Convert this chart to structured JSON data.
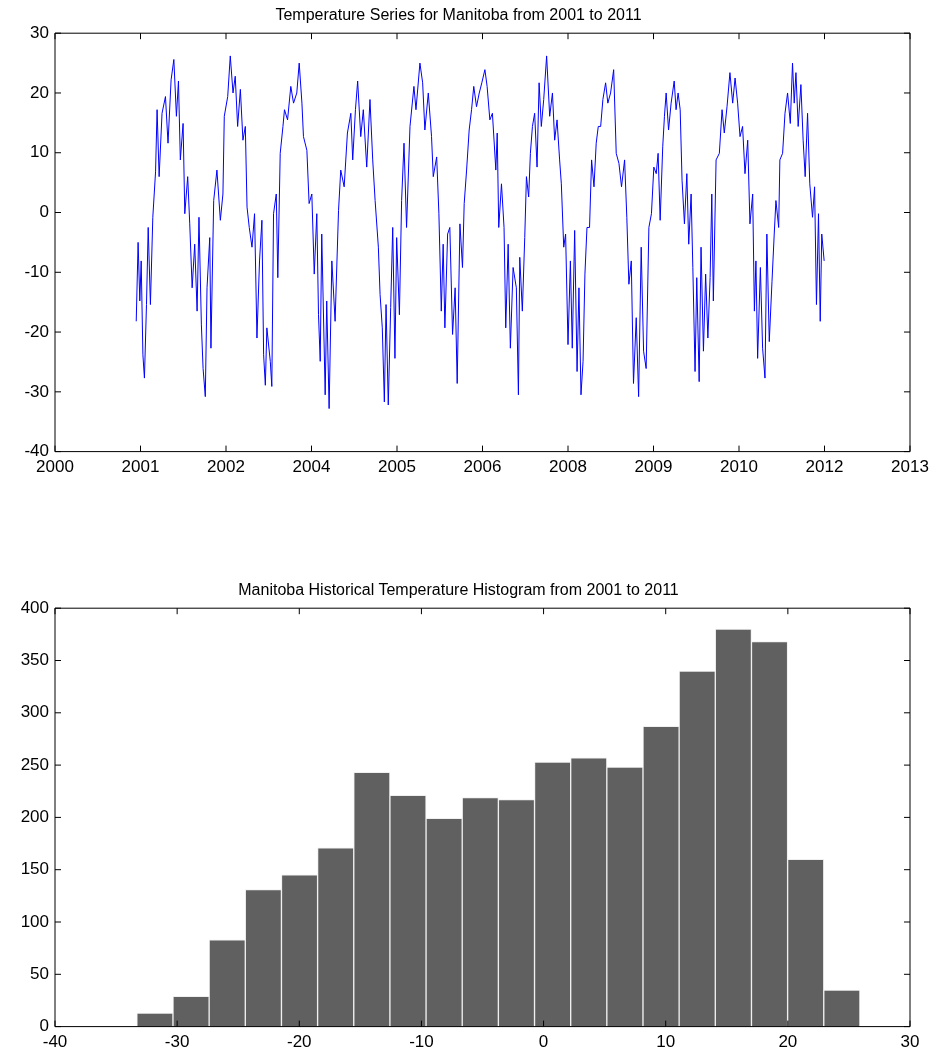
{
  "chart_data": [
    {
      "type": "line",
      "title": "Temperature Series for Manitoba from 2001 to 2011",
      "color": "#0000ff",
      "x": [
        "2001-05-04",
        "2001-05-15",
        "2001-05-25",
        "2001-06-02",
        "2001-06-12",
        "2001-06-21",
        "2001-07-03",
        "2001-07-13",
        "2001-07-26",
        "2001-08-09",
        "2001-08-25",
        "2001-09-03",
        "2001-09-15",
        "2001-10-02",
        "2001-10-22",
        "2001-11-06",
        "2001-11-24",
        "2001-12-10",
        "2001-12-25",
        "2002-01-06",
        "2002-01-17",
        "2002-02-02",
        "2002-02-12",
        "2002-03-01",
        "2002-03-13",
        "2002-03-27",
        "2002-04-11",
        "2002-04-25",
        "2002-05-06",
        "2002-05-20",
        "2002-05-30",
        "2002-06-12",
        "2002-06-22",
        "2002-07-08",
        "2002-07-15",
        "2002-07-31",
        "2002-08-19",
        "2002-09-08",
        "2002-09-23",
        "2002-10-01",
        "2002-10-21",
        "2002-11-05",
        "2002-11-21",
        "2002-12-04",
        "2002-12-18",
        "2003-01-03",
        "2003-01-18",
        "2003-02-01",
        "2003-02-11",
        "2003-02-24",
        "2003-03-12",
        "2003-03-27",
        "2003-04-10",
        "2003-04-25",
        "2003-05-09",
        "2003-05-19",
        "2003-05-29",
        "2003-06-07",
        "2003-06-27",
        "2003-07-06",
        "2003-07-16",
        "2003-08-01",
        "2003-08-10",
        "2003-08-24",
        "2003-09-09",
        "2003-09-18",
        "2003-10-06",
        "2003-10-25",
        "2003-11-10",
        "2003-11-29",
        "2003-12-13",
        "2003-12-29",
        "2004-01-07",
        "2004-01-27",
        "2004-02-09",
        "2004-02-25",
        "2004-03-10",
        "2004-03-25",
        "2004-04-04",
        "2004-04-14",
        "2004-04-23",
        "2004-05-13",
        "2004-05-22",
        "2004-06-05",
        "2004-06-21",
        "2004-07-10",
        "2004-07-30",
        "2004-08-12",
        "2004-09-01",
        "2004-09-20",
        "2004-10-10",
        "2004-10-21",
        "2004-11-06",
        "2004-11-19",
        "2004-12-07",
        "2004-12-22",
        "2005-01-11",
        "2005-01-30",
        "2005-02-15",
        "2005-03-01",
        "2005-03-20",
        "2005-03-30",
        "2005-04-12",
        "2005-04-24",
        "2005-05-04",
        "2005-05-17",
        "2005-05-31",
        "2005-06-12",
        "2005-06-25",
        "2005-07-05",
        "2005-07-21",
        "2005-08-03",
        "2005-08-17",
        "2005-09-01",
        "2005-09-21",
        "2005-10-14",
        "2005-10-26",
        "2005-11-18",
        "2005-12-04",
        "2005-12-17",
        "2006-01-06",
        "2006-01-25",
        "2006-02-04",
        "2006-02-24",
        "2006-03-09",
        "2006-03-23",
        "2006-04-03",
        "2006-04-13",
        "2006-04-29",
        "2006-05-12",
        "2006-05-28",
        "2006-06-12",
        "2006-06-24",
        "2006-07-10",
        "2006-07-25",
        "2006-08-04",
        "2006-08-18",
        "2006-09-02",
        "2006-09-16",
        "2006-09-29",
        "2006-10-15",
        "2006-10-31",
        "2006-11-15",
        "2006-12-03",
        "2006-12-16",
        "2007-01-01",
        "2007-01-16",
        "2007-02-05",
        "2007-02-13",
        "2007-02-22",
        "2007-03-10",
        "2007-03-25",
        "2007-04-04",
        "2007-04-18",
        "2007-05-01",
        "2007-05-17",
        "2007-06-05",
        "2007-06-17",
        "2007-06-25",
        "2007-07-10",
        "2007-07-24",
        "2007-08-03",
        "2007-08-16",
        "2007-08-26",
        "2007-09-07",
        "2007-09-20",
        "2007-10-04",
        "2007-10-16",
        "2007-10-29",
        "2007-11-12",
        "2007-11-29",
        "2007-12-17",
        "2008-01-02",
        "2008-01-15",
        "2008-01-29",
        "2008-02-13",
        "2008-02-23",
        "2008-03-08",
        "2008-03-19",
        "2008-04-02",
        "2008-04-16",
        "2008-04-27",
        "2008-05-11",
        "2008-05-25",
        "2008-06-05",
        "2008-06-17",
        "2008-06-29",
        "2008-07-10",
        "2008-07-22",
        "2008-08-06",
        "2008-08-18",
        "2008-09-01",
        "2008-09-14",
        "2008-09-26",
        "2008-10-10",
        "2008-10-23",
        "2008-11-08",
        "2008-11-21",
        "2008-12-07",
        "2008-12-25",
        "2009-01-09",
        "2009-01-25",
        "2009-02-09",
        "2009-02-27",
        "2009-03-12",
        "2009-03-24",
        "2009-04-07",
        "2009-04-20",
        "2009-05-06",
        "2009-05-20",
        "2009-06-04",
        "2009-06-18",
        "2009-07-03",
        "2009-07-19",
        "2009-08-03",
        "2009-08-17",
        "2009-08-31",
        "2009-09-11",
        "2009-09-23",
        "2009-10-08",
        "2009-10-18",
        "2009-10-28",
        "2009-11-11",
        "2009-11-26",
        "2009-12-14",
        "2009-12-25",
        "2010-01-06",
        "2010-01-18",
        "2010-01-29",
        "2010-02-12",
        "2010-02-26",
        "2010-03-09",
        "2010-03-23",
        "2010-04-02",
        "2010-04-15",
        "2010-04-25",
        "2010-05-09",
        "2010-05-20",
        "2010-06-03",
        "2010-06-16",
        "2010-06-29",
        "2010-07-12",
        "2010-07-22",
        "2010-07-31",
        "2010-08-16",
        "2010-09-04",
        "2010-09-20",
        "2010-10-03",
        "2010-10-19",
        "2010-11-05",
        "2010-11-21",
        "2010-12-05",
        "2010-12-20",
        "2011-01-03",
        "2011-01-18",
        "2011-02-01",
        "2011-02-17",
        "2011-03-02",
        "2011-03-18",
        "2011-03-28",
        "2011-04-06",
        "2011-04-16",
        "2011-05-02",
        "2011-05-15",
        "2011-05-29",
        "2011-06-09",
        "2011-06-23",
        "2011-07-09",
        "2011-07-22",
        "2011-08-01",
        "2011-08-17",
        "2011-08-24",
        "2011-09-09",
        "2011-09-23",
        "2011-10-08",
        "2011-10-24",
        "2011-11-06",
        "2011-11-16",
        "2011-11-26",
        "2011-12-09",
        "2011-12-25",
        "2012-01-07",
        "2012-01-19",
        "2012-02-02",
        "2012-02-15",
        "2012-03-02",
        "2012-03-14",
        "2012-03-25",
        "2012-04-06",
        "2012-04-16",
        "2012-04-25",
        "2012-05-09"
      ],
      "values": [
        -18.2,
        -5.0,
        -14.8,
        -8.1,
        -23.8,
        -27.7,
        -15.4,
        -2.5,
        -15.4,
        -0.8,
        6.8,
        17.2,
        6.0,
        16.6,
        19.4,
        11.6,
        22.2,
        25.6,
        16.1,
        22.0,
        8.8,
        14.9,
        -0.2,
        6.0,
        -1.9,
        -12.6,
        -5.3,
        -16.5,
        -0.8,
        -18.8,
        -26.1,
        -30.8,
        -12.6,
        -4.2,
        -22.7,
        2.0,
        7.1,
        -1.3,
        3.1,
        16.1,
        19.4,
        26.2,
        20.0,
        22.8,
        14.4,
        20.6,
        12.1,
        14.4,
        0.9,
        -2.5,
        -5.8,
        -0.2,
        -21.0,
        -8.1,
        -1.3,
        -23.8,
        -28.9,
        -19.3,
        -24.9,
        -29.1,
        -0.2,
        3.1,
        -10.9,
        9.9,
        14.4,
        17.2,
        15.5,
        21.1,
        18.3,
        20.0,
        25.0,
        18.3,
        12.7,
        10.4,
        1.5,
        3.1,
        -10.3,
        -0.2,
        -17.1,
        -24.9,
        -3.6,
        -30.5,
        -14.8,
        -32.8,
        -8.1,
        -18.2,
        0.3,
        7.1,
        4.3,
        13.3,
        16.6,
        8.8,
        17.2,
        22.0,
        12.7,
        17.2,
        7.6,
        18.9,
        8.8,
        2.0,
        -5.8,
        -13.7,
        -19.3,
        -31.7,
        -15.4,
        -32.2,
        -15.9,
        -2.5,
        -24.4,
        -4.2,
        -17.1,
        2.0,
        11.6,
        -2.5,
        14.4,
        21.1,
        17.2,
        25.0,
        21.7,
        13.8,
        20.0,
        12.7,
        6.0,
        9.3,
        -0.2,
        -16.5,
        -5.3,
        -19.3,
        -3.6,
        -2.5,
        -20.4,
        -12.6,
        -28.6,
        -1.9,
        -9.2,
        1.5,
        7.1,
        13.8,
        17.2,
        21.1,
        17.7,
        20.0,
        21.7,
        23.9,
        21.1,
        15.5,
        16.6,
        7.1,
        13.3,
        -2.5,
        4.8,
        -2.5,
        -19.3,
        -5.3,
        -22.7,
        -9.2,
        -12.6,
        -30.5,
        -7.5,
        -16.5,
        -4.2,
        6.0,
        2.6,
        9.9,
        14.4,
        16.6,
        7.6,
        21.7,
        14.4,
        18.9,
        26.2,
        16.1,
        20.0,
        12.1,
        15.5,
        8.8,
        4.8,
        -5.8,
        -3.6,
        -22.1,
        -8.1,
        -22.7,
        -3.0,
        -26.6,
        -12.6,
        -30.5,
        -24.9,
        -10.3,
        -2.5,
        -2.5,
        8.8,
        4.3,
        11.6,
        14.4,
        14.4,
        18.9,
        21.7,
        18.3,
        20.0,
        23.9,
        9.9,
        8.2,
        4.3,
        8.8,
        -0.8,
        -12.0,
        -8.1,
        -28.6,
        -17.6,
        -30.8,
        -5.8,
        -23.2,
        -26.1,
        -2.5,
        -0.2,
        7.6,
        6.5,
        9.9,
        -1.3,
        11.0,
        16.1,
        20.0,
        13.8,
        18.3,
        22.0,
        17.2,
        20.0,
        17.2,
        5.4,
        -1.9,
        6.5,
        -5.3,
        3.1,
        -9.2,
        -26.6,
        -10.9,
        -28.3,
        -5.8,
        -23.2,
        -10.3,
        -21.0,
        -10.9,
        3.1,
        -14.8,
        8.8,
        9.9,
        17.2,
        13.3,
        17.7,
        23.4,
        18.3,
        22.5,
        18.3,
        12.7,
        14.4,
        6.5,
        12.1,
        -1.9,
        3.1,
        -16.5,
        -8.1,
        -24.4,
        -9.2,
        -22.7,
        -27.7,
        -3.6,
        -21.6,
        -11.5,
        -3.6,
        2.0,
        -2.5,
        8.8,
        9.9,
        16.6,
        20.0,
        14.9,
        25.0,
        18.3,
        23.4,
        14.4,
        21.4,
        12.1,
        6.0,
        16.6,
        4.8,
        -0.8,
        4.3,
        -15.4,
        -0.2,
        -18.2,
        -3.6,
        -8.1
      ],
      "xlim": [
        "2000-01-15",
        "2013-09-23"
      ],
      "xticks": [
        {
          "value": "2000-01-15",
          "label": "2000"
        },
        {
          "value": "2001-05-29",
          "label": "2001"
        },
        {
          "value": "2002-10-11",
          "label": "2002"
        },
        {
          "value": "2004-02-23",
          "label": "2004"
        },
        {
          "value": "2005-07-07",
          "label": "2005"
        },
        {
          "value": "2006-11-19",
          "label": "2006"
        },
        {
          "value": "2008-04-02",
          "label": "2008"
        },
        {
          "value": "2009-08-15",
          "label": "2009"
        },
        {
          "value": "2010-12-28",
          "label": "2010"
        },
        {
          "value": "2012-05-11",
          "label": "2012"
        },
        {
          "value": "2013-09-23",
          "label": "2013"
        }
      ],
      "ylim": [
        -40,
        30
      ],
      "yticks": [
        -40,
        -30,
        -20,
        -10,
        0,
        10,
        20,
        30
      ]
    },
    {
      "type": "histogram",
      "title": "Manitoba Historical Temperature Histogram from 2001 to 2011",
      "color": "#606060",
      "bins": [
        -33.3,
        -30.34,
        -27.38,
        -24.42,
        -21.46,
        -18.5,
        -15.54,
        -12.58,
        -9.62,
        -6.66,
        -3.7,
        -0.74,
        2.22,
        5.18,
        8.14,
        11.1,
        14.06,
        17.02,
        19.98,
        22.94,
        25.9
      ],
      "values": [
        13,
        29,
        83,
        131,
        145,
        171,
        243,
        221,
        199,
        219,
        217,
        253,
        257,
        248,
        287,
        340,
        380,
        368,
        160,
        35
      ],
      "xlim": [
        -40,
        30
      ],
      "xticks": [
        -40,
        -30,
        -20,
        -10,
        0,
        10,
        20,
        30
      ],
      "ylim": [
        0,
        400
      ],
      "yticks": [
        0,
        50,
        100,
        150,
        200,
        250,
        300,
        350,
        400
      ]
    }
  ]
}
